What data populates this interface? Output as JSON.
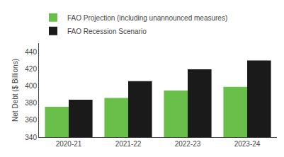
{
  "chart_data": {
    "type": "bar",
    "categories": [
      "2020-21",
      "2021-22",
      "2022-23",
      "2023-24"
    ],
    "series": [
      {
        "name": "FAO Projection (including unannounced measures)",
        "color": "#6abf4b",
        "values": [
          375.5,
          386.0,
          394.5,
          399.0
        ]
      },
      {
        "name": "FAO Recession Scenario",
        "color": "#1a1a1a",
        "values": [
          383.8,
          405.5,
          419.5,
          429.7
        ]
      }
    ],
    "ylabel": "Net Debt ($ Billions)",
    "ylim": [
      340,
      450
    ],
    "yticks": [
      340,
      360,
      380,
      400,
      420,
      440
    ],
    "grid": false,
    "legend": "upper left"
  }
}
